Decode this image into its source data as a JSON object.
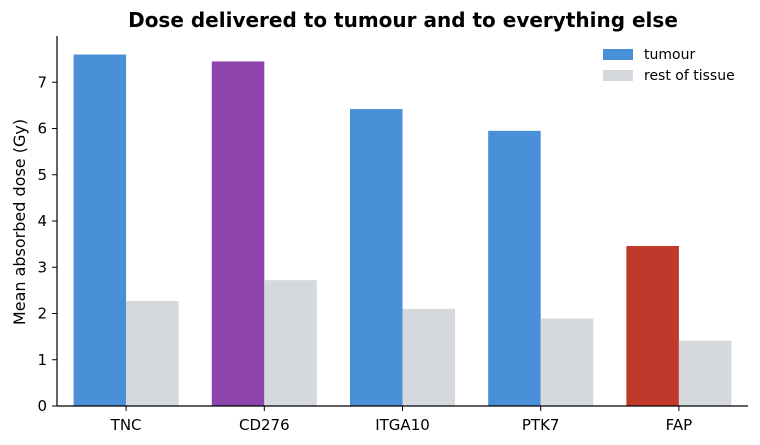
{
  "chart_data": {
    "type": "bar",
    "title": "Dose delivered to tumour and to everything else",
    "xlabel": "",
    "ylabel": "Mean absorbed dose (Gy)",
    "categories": [
      "TNC",
      "CD276",
      "ITGA10",
      "PTK7",
      "FAP"
    ],
    "series": [
      {
        "name": "tumour",
        "values": [
          7.6,
          7.45,
          6.42,
          5.95,
          3.46
        ],
        "colors": [
          "#4a90d9",
          "#8e44ad",
          "#4a90d9",
          "#4a90d9",
          "#c0392b"
        ],
        "legend_color": "#4a90d9"
      },
      {
        "name": "rest of tissue",
        "values": [
          2.27,
          2.72,
          2.1,
          1.89,
          1.41
        ],
        "colors": [
          "#d5d8dc",
          "#d5d8dc",
          "#d5d8dc",
          "#d5d8dc",
          "#d5d8dc"
        ],
        "legend_color": "#d5d8dc"
      }
    ],
    "yticks": [
      "0",
      "1",
      "2",
      "3",
      "4",
      "5",
      "6",
      "7"
    ],
    "ylim": [
      0,
      8
    ],
    "grid": false,
    "legend_position": "top-right"
  }
}
